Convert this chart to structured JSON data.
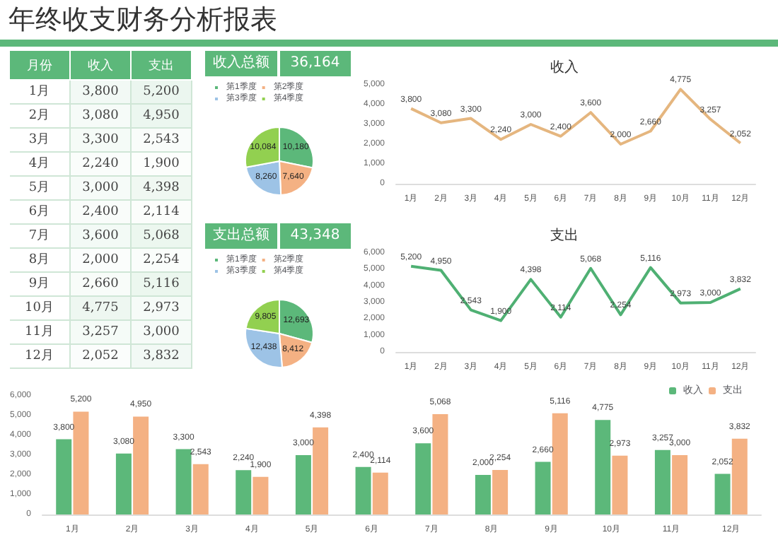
{
  "chart_data": [
    {
      "type": "heatmap",
      "title": "年终收支财务分析报表",
      "ylabel": "月份",
      "categories": [
        "收入",
        "支出"
      ],
      "y_categories": [
        "1月",
        "2月",
        "3月",
        "4月",
        "5月",
        "6月",
        "7月",
        "8月",
        "9月",
        "10月",
        "11月",
        "12月"
      ],
      "cells": [
        [
          3800,
          5200
        ],
        [
          3080,
          4950
        ],
        [
          3300,
          2543
        ],
        [
          2240,
          1900
        ],
        [
          3000,
          4398
        ],
        [
          2400,
          2114
        ],
        [
          3600,
          5068
        ],
        [
          2000,
          2254
        ],
        [
          2660,
          5116
        ],
        [
          4775,
          2973
        ],
        [
          3257,
          3000
        ],
        [
          2052,
          3832
        ]
      ],
      "cell_labels": [
        [
          "3,800",
          "5,200"
        ],
        [
          "3,080",
          "4,950"
        ],
        [
          "3,300",
          "2,543"
        ],
        [
          "2,240",
          "1,900"
        ],
        [
          "3,000",
          "4,398"
        ],
        [
          "2,400",
          "2,114"
        ],
        [
          "3,600",
          "5,068"
        ],
        [
          "2,000",
          "2,254"
        ],
        [
          "2,660",
          "5,116"
        ],
        [
          "4,775",
          "2,973"
        ],
        [
          "3,257",
          "3,000"
        ],
        [
          "2,052",
          "3,832"
        ]
      ]
    },
    {
      "type": "pie",
      "title": "收入总额",
      "annotations": [
        "36,164"
      ],
      "categories": [
        "第1季度",
        "第2季度",
        "第3季度",
        "第4季度"
      ],
      "values": [
        10180,
        7640,
        8260,
        10084
      ],
      "value_labels": [
        "10,180",
        "7,640",
        "8,260",
        "10,084"
      ],
      "colors": [
        "#5cb87a",
        "#f4b183",
        "#9dc3e6",
        "#92d050"
      ],
      "legend": "top"
    },
    {
      "type": "line",
      "title": "收入",
      "categories": [
        "1月",
        "2月",
        "3月",
        "4月",
        "5月",
        "6月",
        "7月",
        "8月",
        "9月",
        "10月",
        "11月",
        "12月"
      ],
      "values": [
        3800,
        3080,
        3300,
        2240,
        3000,
        2400,
        3600,
        2000,
        2660,
        4775,
        3257,
        2052
      ],
      "value_labels": [
        "3,800",
        "3,080",
        "3,300",
        "2,240",
        "3,000",
        "2,400",
        "3,600",
        "2,000",
        "2,660",
        "4,775",
        "3,257",
        "2,052"
      ],
      "color": "#e5b67f",
      "ylim": [
        0,
        5000
      ],
      "yticks": [
        {
          "value": 0,
          "label": "0"
        },
        {
          "value": 1000,
          "label": "1,000"
        },
        {
          "value": 2000,
          "label": "2,000"
        },
        {
          "value": 3000,
          "label": "3,000"
        },
        {
          "value": 4000,
          "label": "4,000"
        },
        {
          "value": 5000,
          "label": "5,000"
        }
      ],
      "marker": "none"
    },
    {
      "type": "pie",
      "title": "支出总额",
      "annotations": [
        "43,348"
      ],
      "categories": [
        "第1季度",
        "第2季度",
        "第3季度",
        "第4季度"
      ],
      "values": [
        12693,
        8412,
        12438,
        9805
      ],
      "value_labels": [
        "12,693",
        "8,412",
        "12,438",
        "9,805"
      ],
      "colors": [
        "#5cb87a",
        "#f4b183",
        "#9dc3e6",
        "#92d050"
      ],
      "legend": "top"
    },
    {
      "type": "line",
      "title": "支出",
      "categories": [
        "1月",
        "2月",
        "3月",
        "4月",
        "5月",
        "6月",
        "7月",
        "8月",
        "9月",
        "10月",
        "11月",
        "12月"
      ],
      "values": [
        5200,
        4950,
        2543,
        1900,
        4398,
        2114,
        5068,
        2254,
        5116,
        2973,
        3000,
        3832
      ],
      "value_labels": [
        "5,200",
        "4,950",
        "2,543",
        "1,900",
        "4,398",
        "2,114",
        "5,068",
        "2,254",
        "5,116",
        "2,973",
        "3,000",
        "3,832"
      ],
      "color": "#4fb073",
      "ylim": [
        0,
        6000
      ],
      "yticks": [
        {
          "value": 0,
          "label": "0"
        },
        {
          "value": 1000,
          "label": "1,000"
        },
        {
          "value": 2000,
          "label": "2,000"
        },
        {
          "value": 3000,
          "label": "3,000"
        },
        {
          "value": 4000,
          "label": "4,000"
        },
        {
          "value": 5000,
          "label": "5,000"
        },
        {
          "value": 6000,
          "label": "6,000"
        }
      ],
      "marker": "none"
    },
    {
      "type": "bar",
      "categories": [
        "1月",
        "2月",
        "3月",
        "4月",
        "5月",
        "6月",
        "7月",
        "8月",
        "9月",
        "10月",
        "11月",
        "12月"
      ],
      "ylim": [
        0,
        6000
      ],
      "yticks": [
        {
          "value": 0,
          "label": "0"
        },
        {
          "value": 1000,
          "label": "1,000"
        },
        {
          "value": 2000,
          "label": "2,000"
        },
        {
          "value": 3000,
          "label": "3,000"
        },
        {
          "value": 4000,
          "label": "4,000"
        },
        {
          "value": 5000,
          "label": "5,000"
        },
        {
          "value": 6000,
          "label": "6,000"
        }
      ],
      "legend": "top right",
      "series": [
        {
          "name": "收入",
          "color": "#5cb87a",
          "values": [
            3800,
            3080,
            3300,
            2240,
            3000,
            2400,
            3600,
            2000,
            2660,
            4775,
            3257,
            2052
          ],
          "value_labels": [
            "3,800",
            "3,080",
            "3,300",
            "2,240",
            "3,000",
            "2,400",
            "3,600",
            "2,000",
            "2,660",
            "4,775",
            "3,257",
            "2,052"
          ]
        },
        {
          "name": "支出",
          "color": "#f4b183",
          "values": [
            5200,
            4950,
            2543,
            1900,
            4398,
            2114,
            5068,
            2254,
            5116,
            2973,
            3000,
            3832
          ],
          "value_labels": [
            "5,200",
            "4,950",
            "2,543",
            "1,900",
            "4,398",
            "2,114",
            "5,068",
            "2,254",
            "5,116",
            "2,973",
            "3,000",
            "3,832"
          ]
        }
      ]
    }
  ]
}
